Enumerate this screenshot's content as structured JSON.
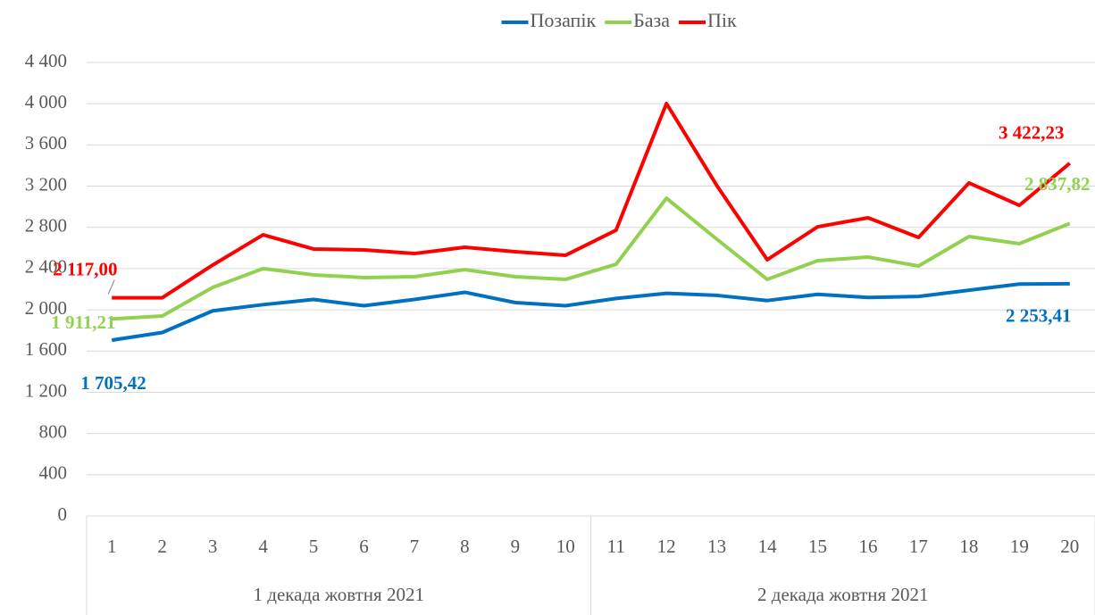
{
  "chart_data": {
    "type": "line",
    "categories": [
      "1",
      "2",
      "3",
      "4",
      "5",
      "6",
      "7",
      "8",
      "9",
      "10",
      "11",
      "12",
      "13",
      "14",
      "15",
      "16",
      "17",
      "18",
      "19",
      "20"
    ],
    "category_groups": [
      "1 декада жовтня 2021",
      "2 декада жовтня 2021"
    ],
    "series": [
      {
        "name": "Позапік",
        "color": "#0070c0",
        "values": [
          1705.42,
          1780,
          1990,
          2050,
          2100,
          2040,
          2100,
          2170,
          2070,
          2040,
          2110,
          2160,
          2140,
          2090,
          2150,
          2120,
          2130,
          2190,
          2250,
          2253.41
        ],
        "value_labels": [
          "1 705,42",
          null,
          null,
          null,
          null,
          null,
          null,
          null,
          null,
          null,
          null,
          null,
          null,
          null,
          null,
          null,
          null,
          null,
          null,
          "2 253,41"
        ]
      },
      {
        "name": "База",
        "color": "#92d050",
        "values": [
          1911.21,
          1940,
          2217,
          2400,
          2339,
          2313,
          2321,
          2390,
          2321,
          2295,
          2442,
          3083,
          2685,
          2295,
          2477,
          2512,
          2425,
          2711,
          2642,
          2837.82
        ],
        "value_labels": [
          "1 911,21",
          null,
          null,
          null,
          null,
          null,
          null,
          null,
          null,
          null,
          null,
          null,
          null,
          null,
          null,
          null,
          null,
          null,
          null,
          "2 837,82"
        ]
      },
      {
        "name": "Пік",
        "color": "#ff0000",
        "values": [
          2117,
          2117,
          2434,
          2728,
          2590,
          2581,
          2546,
          2607,
          2564,
          2529,
          2772,
          4002,
          3205,
          2486,
          2806,
          2893,
          2702,
          3231,
          3014,
          3422.23
        ],
        "value_labels": [
          "2 117,00",
          null,
          null,
          null,
          null,
          null,
          null,
          null,
          null,
          null,
          null,
          null,
          null,
          null,
          null,
          null,
          null,
          null,
          null,
          "3 422,23"
        ]
      }
    ],
    "ylim": [
      0,
      4400
    ],
    "yticks": [
      0,
      400,
      800,
      {
        "value": 1200,
        "label": "1 200"
      },
      {
        "value": 1600,
        "label": "1 600"
      },
      {
        "value": 2000,
        "label": "2 000"
      },
      {
        "value": 2400,
        "label": "2 400"
      },
      {
        "value": 2800,
        "label": "2 800"
      },
      {
        "value": 3200,
        "label": "3 200"
      },
      {
        "value": 3600,
        "label": "3 600"
      },
      {
        "value": 4000,
        "label": "4 000"
      },
      {
        "value": 4400,
        "label": "4 400"
      }
    ],
    "grid": true,
    "legend": "top"
  }
}
